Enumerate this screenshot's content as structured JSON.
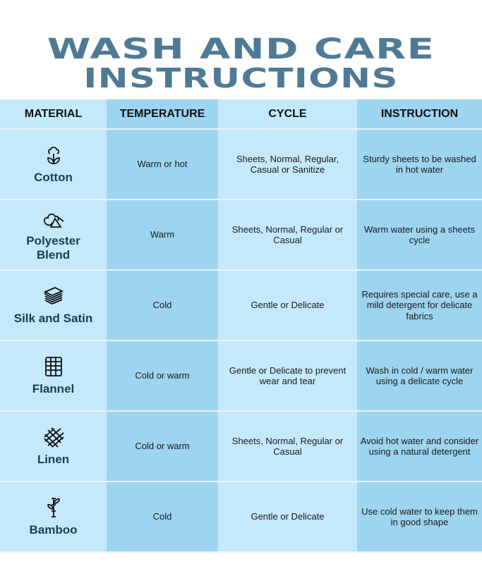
{
  "title": {
    "line1": "WASH AND CARE",
    "line2": "INSTRUCTIONS"
  },
  "colors": {
    "title": "#4f7a96",
    "light_column": "#c4e9fb",
    "dark_column": "#9dd4f0",
    "material_text": "#1d3d4c"
  },
  "headers": [
    "MATERIAL",
    "TEMPERATURE",
    "CYCLE",
    "INSTRUCTION"
  ],
  "rows": [
    {
      "icon": "cotton-flower-icon",
      "material": "Cotton",
      "temperature": "Warm or hot",
      "cycle": "Sheets, Normal, Regular, Casual or Sanitize",
      "instruction": "Sturdy sheets to be washed in hot water"
    },
    {
      "icon": "polyester-shapes-icon",
      "material": "Polyester Blend",
      "temperature": "Warm",
      "cycle": "Sheets, Normal, Regular or Casual",
      "instruction": "Warm water using a sheets cycle"
    },
    {
      "icon": "folded-fabric-stack-icon",
      "material": "Silk and Satin",
      "temperature": "Cold",
      "cycle": "Gentle or Delicate",
      "instruction": "Requires special care, use a mild detergent for delicate fabrics"
    },
    {
      "icon": "plaid-grid-icon",
      "material": "Flannel",
      "temperature": "Cold or warm",
      "cycle": "Gentle or Delicate to prevent wear and tear",
      "instruction": "Wash in cold / warm water using a delicate cycle"
    },
    {
      "icon": "woven-threads-icon",
      "material": "Linen",
      "temperature": "Cold or warm",
      "cycle": "Sheets, Normal, Regular or Casual",
      "instruction": "Avoid hot water and consider using a natural detergent"
    },
    {
      "icon": "bamboo-stalk-icon",
      "material": "Bamboo",
      "temperature": "Cold",
      "cycle": "Gentle or Delicate",
      "instruction": "Use cold water to keep them in good shape"
    }
  ]
}
